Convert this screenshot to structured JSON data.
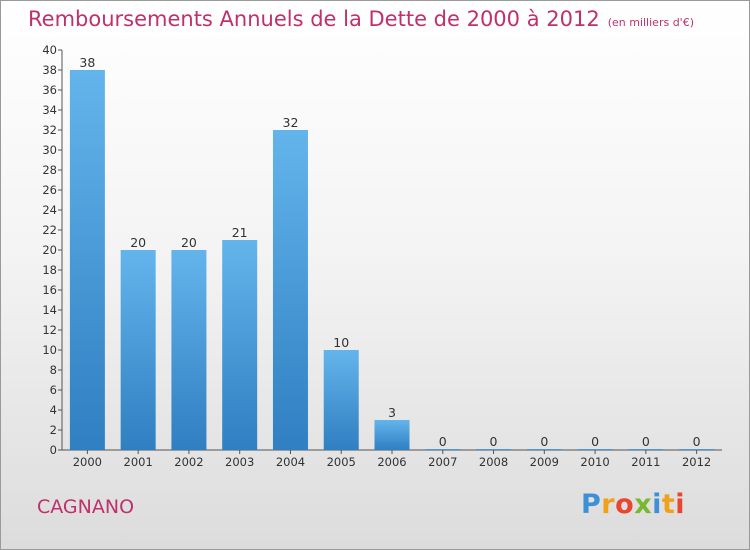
{
  "header": {
    "title": "Remboursements Annuels de la Dette de 2000 à 2012",
    "unit": "(en milliers d'€)"
  },
  "commune": "CAGNANO",
  "brand": {
    "letters": [
      "P",
      "r",
      "o",
      "x",
      "i",
      "t",
      "i"
    ],
    "colors": [
      "#3d8fd6",
      "#f0a019",
      "#e9462f",
      "#7ab82f",
      "#3d8fd6",
      "#f0a019",
      "#e9462f"
    ]
  },
  "colors": {
    "bar_top": "#64b4ec",
    "bar_bottom": "#2f7fc2",
    "title": "#c0306c"
  },
  "chart_data": {
    "type": "bar",
    "title": "Remboursements Annuels de la Dette de 2000 à 2012",
    "xlabel": "",
    "ylabel": "",
    "categories": [
      "2000",
      "2001",
      "2002",
      "2003",
      "2004",
      "2005",
      "2006",
      "2007",
      "2008",
      "2009",
      "2010",
      "2011",
      "2012"
    ],
    "values": [
      38,
      20,
      20,
      21,
      32,
      10,
      3,
      0,
      0,
      0,
      0,
      0,
      0
    ],
    "ylim": [
      0,
      40
    ],
    "yticks": [
      0,
      2,
      4,
      6,
      8,
      10,
      12,
      14,
      16,
      18,
      20,
      22,
      24,
      26,
      28,
      30,
      32,
      34,
      36,
      38,
      40
    ],
    "grid": false,
    "legend": "none"
  }
}
